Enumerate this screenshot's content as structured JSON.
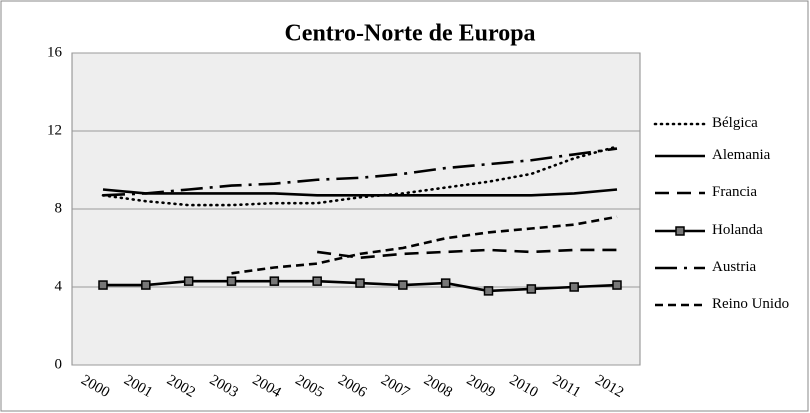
{
  "chart_data": {
    "type": "line",
    "title": "Centro-Norte de Europa",
    "categories": [
      "2000",
      "2001",
      "2002",
      "2003",
      "2004",
      "2005",
      "2006",
      "2007",
      "2008",
      "2009",
      "2010",
      "2011",
      "2012"
    ],
    "ylim": [
      0,
      16
    ],
    "yticks": [
      0,
      4,
      8,
      12,
      16
    ],
    "grid": true,
    "legend": "right",
    "series": [
      {
        "name": "Bélgica",
        "color": "#000000",
        "values": [
          8.7,
          8.4,
          8.2,
          8.2,
          8.3,
          8.3,
          8.6,
          8.8,
          9.1,
          9.4,
          9.8,
          10.6,
          11.2
        ]
      },
      {
        "name": "Alemania",
        "color": "#000000",
        "values": [
          9.0,
          8.8,
          8.8,
          8.8,
          8.8,
          8.7,
          8.7,
          8.7,
          8.7,
          8.7,
          8.7,
          8.8,
          9.0
        ]
      },
      {
        "name": "Francia",
        "color": "#000000",
        "values": [
          null,
          null,
          null,
          null,
          null,
          5.8,
          5.5,
          5.7,
          5.8,
          5.9,
          5.8,
          5.9,
          5.9
        ]
      },
      {
        "name": "Holanda",
        "color": "#000000",
        "values": [
          4.1,
          4.1,
          4.3,
          4.3,
          4.3,
          4.3,
          4.2,
          4.1,
          4.2,
          3.8,
          3.9,
          4.0,
          4.1
        ]
      },
      {
        "name": "Austria",
        "color": "#000000",
        "values": [
          8.7,
          8.8,
          9.0,
          9.2,
          9.3,
          9.5,
          9.6,
          9.8,
          10.1,
          10.3,
          10.5,
          10.8,
          11.1
        ]
      },
      {
        "name": "Reino Unido",
        "color": "#000000",
        "values": [
          null,
          null,
          null,
          4.7,
          5.0,
          5.2,
          5.7,
          6.0,
          6.5,
          6.8,
          7.0,
          7.2,
          7.6
        ]
      }
    ]
  }
}
